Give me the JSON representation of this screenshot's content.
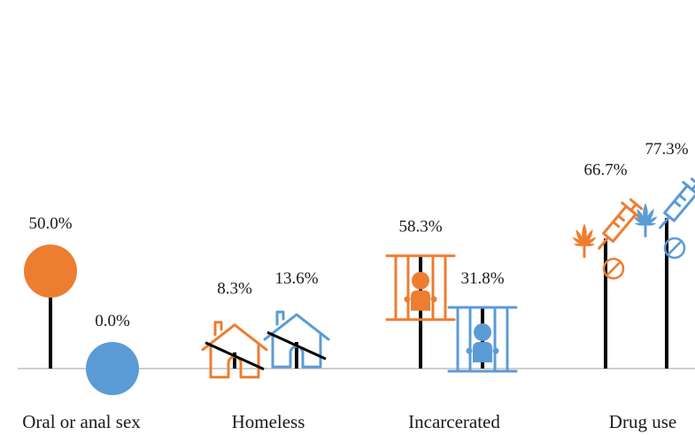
{
  "chart_data": {
    "type": "bar",
    "style": "lollipop-pictogram",
    "title": "",
    "xlabel": "",
    "ylabel": "",
    "ylim": [
      0,
      100
    ],
    "grid": false,
    "legend": "none",
    "categories": [
      "Oral or anal sex",
      "Homeless",
      "Incarcerated",
      "Drug use"
    ],
    "series": [
      {
        "color": "#ED7D31",
        "values": [
          50.0,
          8.3,
          58.3,
          66.7
        ],
        "labels": [
          "50.0%",
          "8.3%",
          "58.3%",
          "66.7%"
        ],
        "icons": [
          "circle-icon",
          "house-icon",
          "jail-icon",
          "drugs-icon"
        ]
      },
      {
        "color": "#5B9BD5",
        "values": [
          0.0,
          13.6,
          31.8,
          77.3
        ],
        "labels": [
          "0.0%",
          "13.6%",
          "31.8%",
          "77.3%"
        ],
        "icons": [
          "circle-icon",
          "house-icon",
          "jail-icon",
          "drugs-icon"
        ]
      }
    ]
  }
}
